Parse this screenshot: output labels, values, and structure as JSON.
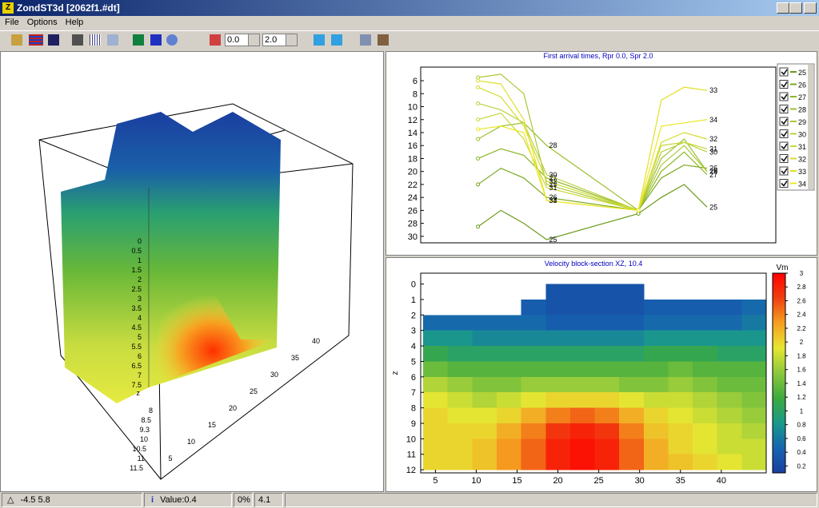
{
  "window": {
    "title": "ZondST3d [2062f1.#dt]"
  },
  "menu": [
    "File",
    "Options",
    "Help"
  ],
  "toolbar": {
    "combo1": "0.0",
    "combo2": "2.0"
  },
  "status": [
    "-4.5 5.8",
    "Value:0.4",
    "0%",
    "4.1"
  ],
  "view3d": {
    "z_labels": [
      "0",
      "0.5",
      "1",
      "1.5",
      "2",
      "2.5",
      "3",
      "3.5",
      "4",
      "4.5",
      "5",
      "5.5",
      "6",
      "6.5",
      "7",
      "7.5"
    ],
    "z_labels_lower": [
      "8",
      "8.5",
      "9.3",
      "10",
      "10.5",
      "11",
      "11.5"
    ],
    "x_labels": [
      "5",
      "10",
      "15",
      "20",
      "25",
      "30",
      "35",
      "40"
    ],
    "axis_label": "z"
  },
  "chart_data": [
    {
      "type": "line",
      "title": "First arrival times, Rpr 0.0, Spr 2.0",
      "x": [
        4,
        5,
        6,
        7,
        11,
        12,
        13,
        14
      ],
      "xlim": [
        1.5,
        17
      ],
      "ylim": [
        3.9,
        31
      ],
      "y_reversed": true,
      "yticks": [
        6,
        8,
        10,
        12,
        14,
        16,
        18,
        20,
        22,
        24,
        26,
        28,
        30
      ],
      "series": [
        {
          "name": "25",
          "color": "#6a9a1a",
          "values": [
            28.5,
            26,
            28,
            30.5,
            26.5,
            24,
            22,
            25.5
          ]
        },
        {
          "name": "26",
          "color": "#7aa820",
          "values": [
            22,
            19.5,
            21,
            24,
            26,
            21,
            19,
            19.5
          ]
        },
        {
          "name": "27",
          "color": "#8ab628",
          "values": [
            18,
            16.5,
            17.5,
            21,
            26,
            20,
            17,
            20.5
          ]
        },
        {
          "name": "28",
          "color": "#9ac030",
          "values": [
            15,
            13,
            12.5,
            16,
            26,
            18,
            15,
            20
          ]
        },
        {
          "name": "29",
          "color": "#aac838",
          "values": [
            5.5,
            5,
            8,
            22,
            26,
            19,
            16,
            20
          ]
        },
        {
          "name": "30",
          "color": "#bad040",
          "values": [
            9.5,
            10.5,
            12.5,
            20.5,
            26,
            17,
            15.5,
            17
          ]
        },
        {
          "name": "31",
          "color": "#c8d838",
          "values": [
            12,
            11,
            15,
            22.5,
            26,
            16,
            15.5,
            16.5
          ]
        },
        {
          "name": "32",
          "color": "#d4dc30",
          "values": [
            7,
            8.5,
            13,
            21.5,
            26,
            15.5,
            14,
            15
          ]
        },
        {
          "name": "33",
          "color": "#e0e028",
          "values": [
            6,
            6.5,
            12,
            24.5,
            26,
            9,
            7,
            7.5
          ]
        },
        {
          "name": "34",
          "color": "#ece820",
          "values": [
            13.5,
            13,
            14,
            24.5,
            26,
            13,
            12.5,
            12
          ]
        }
      ]
    },
    {
      "type": "heatmap",
      "title": "Velocity block-section XZ, 10.4",
      "y_label": "z",
      "x_edges": [
        3.5,
        6.5,
        9.5,
        12.5,
        15.5,
        18.5,
        21.5,
        24.5,
        27.5,
        30.5,
        33.5,
        36.5,
        39.5,
        42.5,
        45.5
      ],
      "y_edges": [
        0,
        1,
        2,
        3,
        4,
        5,
        6,
        7,
        8,
        9,
        10,
        11,
        12
      ],
      "xlim": [
        3.2,
        45.5
      ],
      "ylim": [
        -0.7,
        12.2
      ],
      "y_reversed": true,
      "xticks": [
        5,
        10,
        15,
        20,
        25,
        30,
        35,
        40
      ],
      "yticks": [
        0,
        1,
        2,
        3,
        4,
        5,
        6,
        7,
        8,
        9,
        10,
        11,
        12
      ],
      "values": [
        [
          null,
          null,
          null,
          null,
          null,
          0.3,
          0.3,
          0.3,
          0.3,
          null,
          null,
          null,
          null,
          null
        ],
        [
          null,
          null,
          null,
          null,
          0.4,
          0.3,
          0.3,
          0.3,
          0.3,
          0.4,
          0.4,
          0.4,
          0.4,
          0.5
        ],
        [
          0.5,
          0.5,
          0.5,
          0.5,
          0.5,
          0.4,
          0.4,
          0.4,
          0.4,
          0.5,
          0.5,
          0.5,
          0.5,
          0.6
        ],
        [
          0.8,
          0.8,
          0.7,
          0.7,
          0.7,
          0.7,
          0.7,
          0.7,
          0.7,
          0.8,
          0.8,
          0.8,
          0.8,
          0.8
        ],
        [
          1.1,
          1.0,
          1.0,
          1.0,
          1.0,
          1.0,
          1.0,
          1.0,
          1.0,
          1.1,
          1.1,
          1.1,
          1.0,
          1.0
        ],
        [
          1.4,
          1.3,
          1.3,
          1.3,
          1.3,
          1.3,
          1.3,
          1.3,
          1.3,
          1.3,
          1.4,
          1.3,
          1.3,
          1.3
        ],
        [
          1.7,
          1.6,
          1.5,
          1.5,
          1.6,
          1.6,
          1.6,
          1.6,
          1.5,
          1.5,
          1.6,
          1.5,
          1.4,
          1.4
        ],
        [
          1.9,
          1.8,
          1.7,
          1.8,
          1.9,
          2.0,
          2.0,
          2.0,
          1.9,
          1.8,
          1.8,
          1.7,
          1.6,
          1.5
        ],
        [
          2.0,
          1.9,
          1.9,
          2.0,
          2.2,
          2.4,
          2.5,
          2.4,
          2.2,
          2.0,
          1.9,
          1.8,
          1.7,
          1.6
        ],
        [
          2.0,
          2.0,
          2.0,
          2.2,
          2.4,
          2.7,
          2.8,
          2.7,
          2.4,
          2.1,
          2.0,
          1.9,
          1.8,
          1.7
        ],
        [
          2.0,
          2.0,
          2.1,
          2.3,
          2.5,
          2.8,
          2.9,
          2.8,
          2.5,
          2.2,
          2.0,
          1.9,
          1.8,
          1.8
        ],
        [
          2.0,
          2.0,
          2.1,
          2.3,
          2.5,
          2.8,
          2.9,
          2.8,
          2.5,
          2.2,
          2.1,
          2.0,
          1.9,
          1.8
        ]
      ],
      "colormap": [
        "#1a3fa0",
        "#1565b0",
        "#1a9a8a",
        "#3daa3d",
        "#8cc83c",
        "#e6e632",
        "#f5a020",
        "#f04010",
        "#ff0000"
      ],
      "clim": [
        0.1,
        3.0
      ],
      "colorbar_label": "Vm",
      "colorbar_ticks": [
        0.2,
        0.4,
        0.6,
        0.8,
        1.0,
        1.2,
        1.4,
        1.6,
        1.8,
        2.0,
        2.2,
        2.4,
        2.6,
        2.8,
        3.0
      ]
    }
  ]
}
